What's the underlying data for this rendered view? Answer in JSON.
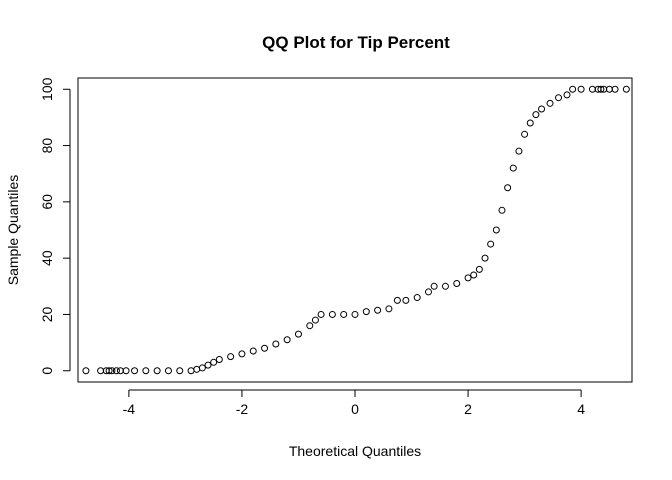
{
  "chart_data": {
    "type": "scatter",
    "title": "QQ Plot for Tip Percent",
    "xlabel": "Theoretical Quantiles",
    "ylabel": "Sample Quantiles",
    "xlim": [
      -4.9,
      4.9
    ],
    "ylim": [
      -4,
      104
    ],
    "x_ticks": [
      -4,
      -2,
      0,
      2,
      4
    ],
    "y_ticks": [
      0,
      20,
      40,
      60,
      80,
      100
    ],
    "grid": false,
    "legend": "none",
    "series": [
      {
        "marker": "open-circle",
        "color": "#000000",
        "x": [
          -4.76,
          -4.5,
          -4.4,
          -4.35,
          -4.3,
          -4.22,
          -4.15,
          -4.05,
          -3.9,
          -3.7,
          -3.5,
          -3.3,
          -3.1,
          -2.9,
          -2.8,
          -2.7,
          -2.6,
          -2.5,
          -2.4,
          -2.2,
          -2.0,
          -1.8,
          -1.6,
          -1.4,
          -1.2,
          -1.0,
          -0.8,
          -0.7,
          -0.6,
          -0.4,
          -0.2,
          0.0,
          0.2,
          0.4,
          0.6,
          0.75,
          0.9,
          1.1,
          1.3,
          1.4,
          1.6,
          1.8,
          2.0,
          2.1,
          2.2,
          2.3,
          2.4,
          2.5,
          2.6,
          2.7,
          2.8,
          2.9,
          3.0,
          3.1,
          3.2,
          3.3,
          3.45,
          3.6,
          3.75,
          3.85,
          4.0,
          4.2,
          4.3,
          4.35,
          4.4,
          4.5,
          4.6,
          4.8
        ],
        "y": [
          0,
          0,
          0,
          0,
          0,
          0,
          0,
          0,
          0,
          0,
          0,
          0,
          0,
          0,
          0.5,
          1,
          2,
          3,
          4,
          5,
          6,
          7,
          8,
          9.5,
          11,
          13,
          16,
          18,
          20,
          20,
          20,
          20,
          21,
          21.5,
          22,
          25,
          25,
          26,
          28,
          30,
          30,
          31,
          33,
          34,
          36,
          40,
          45,
          50,
          57,
          65,
          72,
          78,
          84,
          88,
          91,
          93,
          95,
          97,
          98,
          100,
          100,
          100,
          100,
          100,
          100,
          100,
          100,
          100
        ]
      }
    ]
  }
}
